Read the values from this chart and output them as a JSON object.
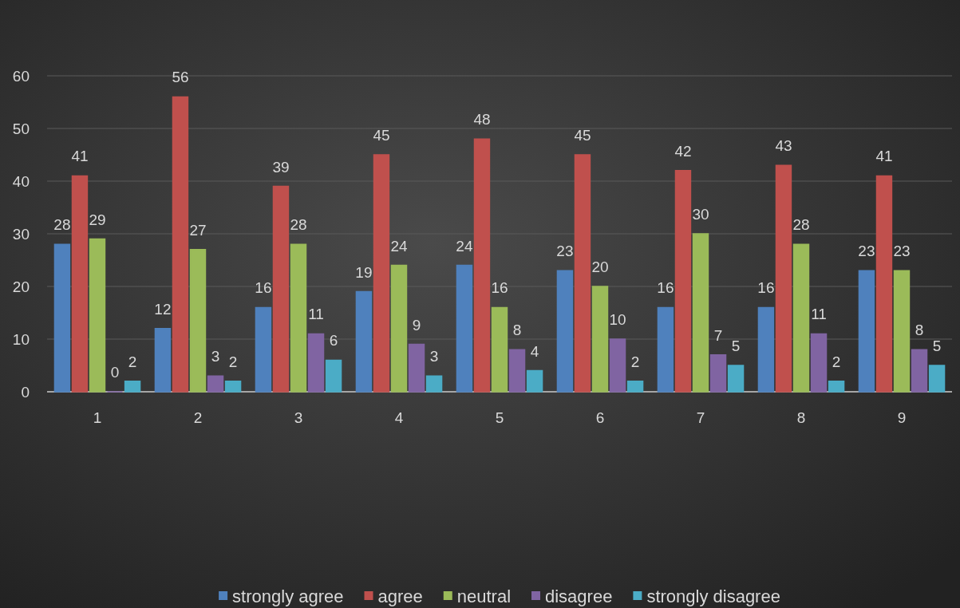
{
  "chart_data": {
    "type": "bar",
    "categories": [
      "1",
      "2",
      "3",
      "4",
      "5",
      "6",
      "7",
      "8",
      "9"
    ],
    "series": [
      {
        "name": "strongly agree",
        "color": "#4f81bd",
        "values": [
          28,
          12,
          16,
          19,
          24,
          23,
          16,
          16,
          23
        ]
      },
      {
        "name": "agree",
        "color": "#c0504d",
        "values": [
          41,
          56,
          39,
          45,
          48,
          45,
          42,
          43,
          41
        ]
      },
      {
        "name": "neutral",
        "color": "#9bbb59",
        "values": [
          29,
          27,
          28,
          24,
          16,
          20,
          30,
          28,
          23
        ]
      },
      {
        "name": "disagree",
        "color": "#8064a2",
        "values": [
          0,
          3,
          11,
          9,
          8,
          10,
          7,
          11,
          8
        ]
      },
      {
        "name": "strongly disagree",
        "color": "#4bacc6",
        "values": [
          2,
          2,
          6,
          3,
          4,
          2,
          5,
          2,
          5
        ]
      }
    ],
    "ylim": [
      0,
      60
    ],
    "yticks": [
      0,
      10,
      20,
      30,
      40,
      50,
      60
    ],
    "grid": "y",
    "data_labels": true,
    "legend": "bottom"
  }
}
